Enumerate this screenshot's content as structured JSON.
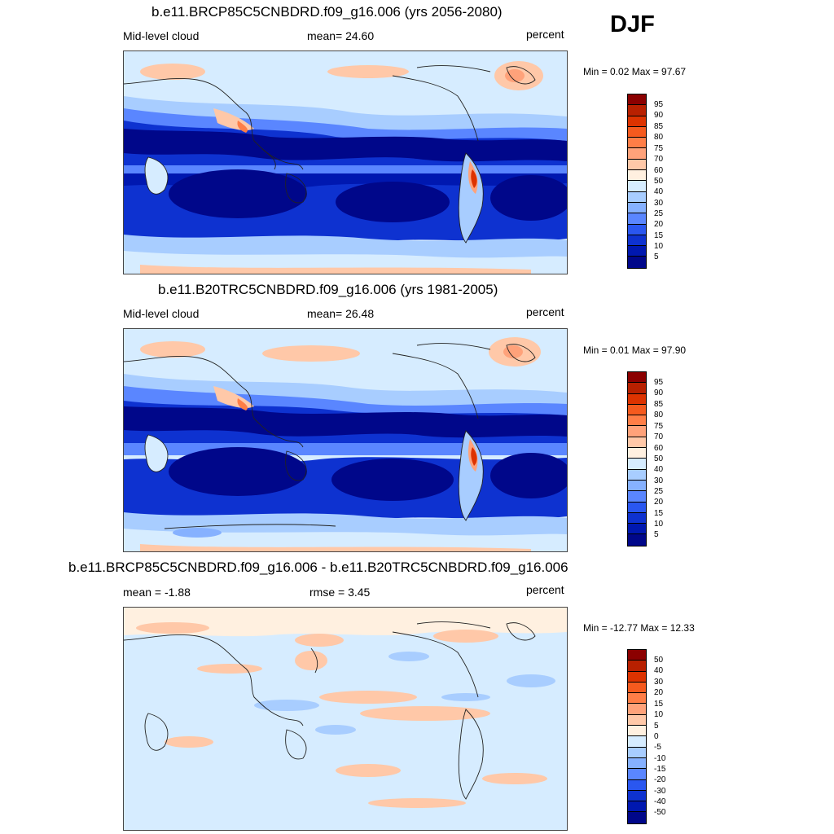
{
  "season": "DJF",
  "panels": [
    {
      "title": "b.e11.BRCP85C5CNBDRD.f09_g16.006 (yrs 2056-2080)",
      "left_label": "Mid-level cloud",
      "center_label": "mean=  24.60",
      "right_label": "percent",
      "minmax": "Min =   0.02 Max =  97.67",
      "legend_labels": [
        "95",
        "90",
        "85",
        "80",
        "75",
        "70",
        "60",
        "50",
        "40",
        "30",
        "25",
        "20",
        "15",
        "10",
        "5"
      ]
    },
    {
      "title": "b.e11.B20TRC5CNBDRD.f09_g16.006 (yrs 1981-2005)",
      "left_label": "Mid-level cloud",
      "center_label": "mean=  26.48",
      "right_label": "percent",
      "minmax": "Min =   0.01 Max =  97.90",
      "legend_labels": [
        "95",
        "90",
        "85",
        "80",
        "75",
        "70",
        "60",
        "50",
        "40",
        "30",
        "25",
        "20",
        "15",
        "10",
        "5"
      ]
    },
    {
      "title": "b.e11.BRCP85C5CNBDRD.f09_g16.006 - b.e11.B20TRC5CNBDRD.f09_g16.006",
      "left_label": "mean =  -1.88",
      "center_label": "rmse =   3.45",
      "right_label": "percent",
      "minmax": "Min = -12.77 Max =  12.33",
      "legend_labels": [
        "50",
        "40",
        "30",
        "20",
        "15",
        "10",
        "5",
        "0",
        "-5",
        "-10",
        "-15",
        "-20",
        "-30",
        "-40",
        "-50"
      ]
    }
  ],
  "colors": {
    "scale": [
      "#8b0000",
      "#b82000",
      "#dd3300",
      "#f55a1e",
      "#ff7e47",
      "#ffa27a",
      "#ffc8a8",
      "#fff0e0",
      "#d6ecff",
      "#a8cdff",
      "#86b1ff",
      "#5a86ff",
      "#2a57f0",
      "#0e32d0",
      "#0018b0",
      "#00078a"
    ],
    "land_outline": "#222222"
  }
}
